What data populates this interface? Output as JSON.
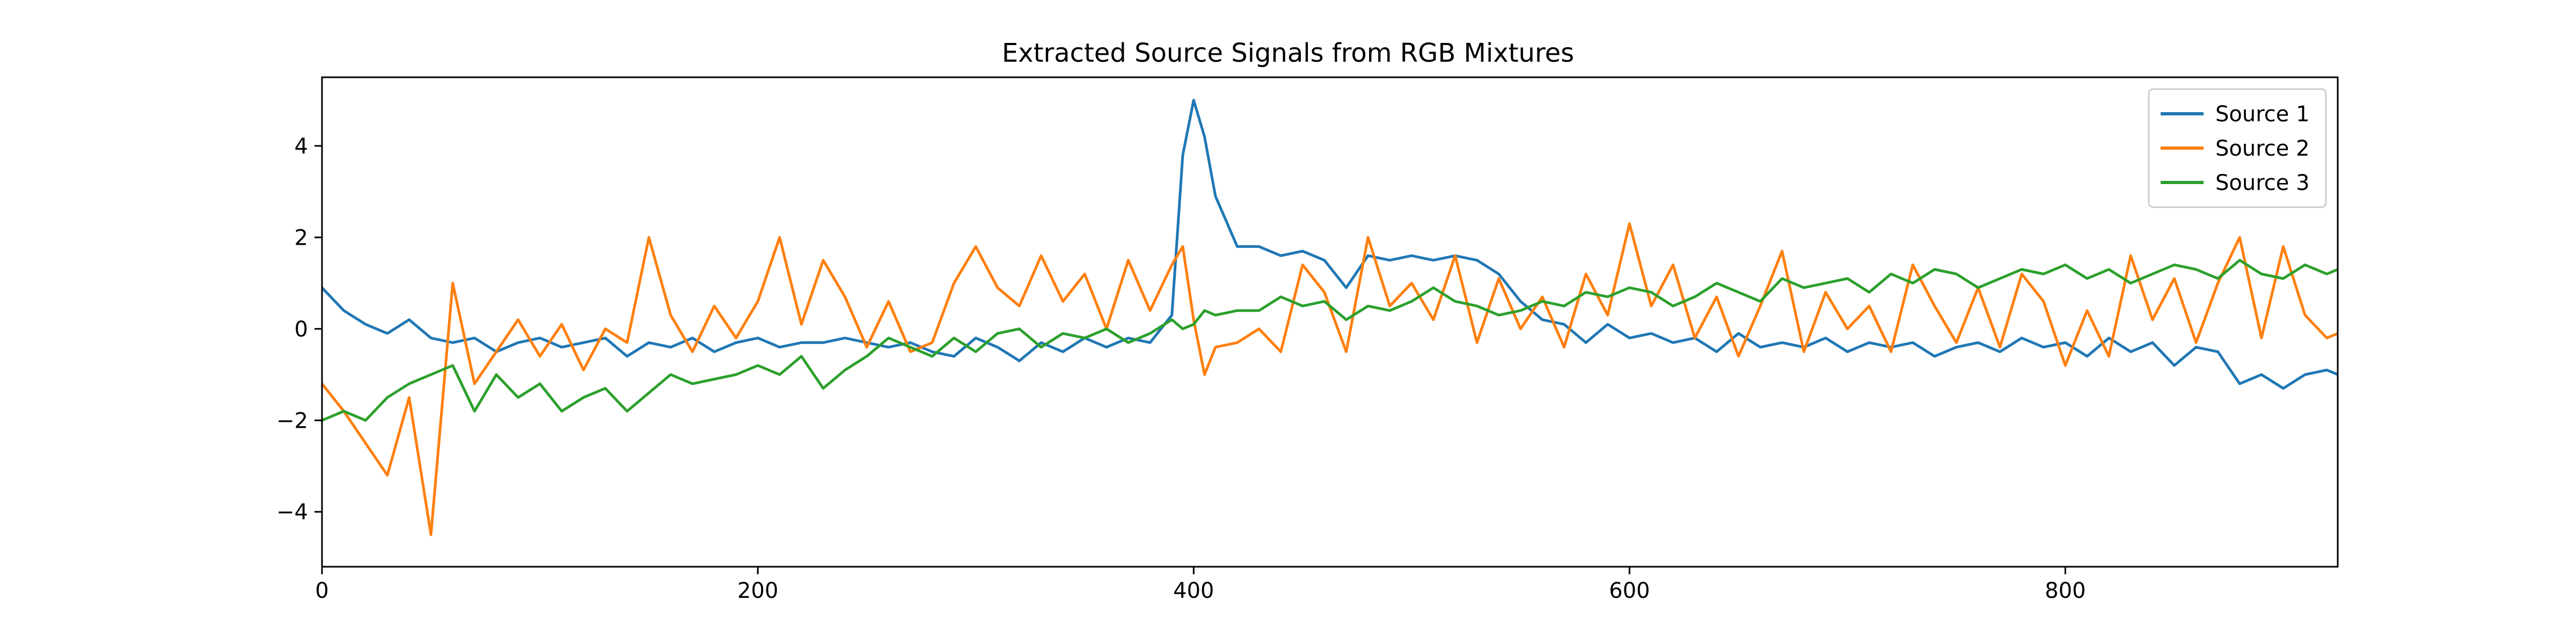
{
  "chart_data": {
    "type": "line",
    "title": "Extracted Source Signals from RGB Mixtures",
    "xlabel": "",
    "ylabel": "",
    "xlim": [
      0,
      925
    ],
    "ylim": [
      -5.2,
      5.5
    ],
    "x_ticks": [
      0,
      200,
      400,
      600,
      800
    ],
    "x_tick_labels": [
      "0",
      "200",
      "400",
      "600",
      "800"
    ],
    "y_ticks": [
      -4,
      -2,
      0,
      2,
      4
    ],
    "y_tick_labels": [
      "−4",
      "−2",
      "0",
      "2",
      "4"
    ],
    "grid": false,
    "legend_position": "upper-right",
    "x": [
      0,
      10,
      20,
      30,
      40,
      50,
      60,
      70,
      80,
      90,
      100,
      110,
      120,
      130,
      140,
      150,
      160,
      170,
      180,
      190,
      200,
      210,
      220,
      230,
      240,
      250,
      260,
      270,
      280,
      290,
      300,
      310,
      320,
      330,
      340,
      350,
      360,
      370,
      380,
      390,
      395,
      400,
      405,
      410,
      420,
      430,
      440,
      450,
      460,
      470,
      480,
      490,
      500,
      510,
      520,
      530,
      540,
      550,
      560,
      570,
      580,
      590,
      600,
      610,
      620,
      630,
      640,
      650,
      660,
      670,
      680,
      690,
      700,
      710,
      720,
      730,
      740,
      750,
      760,
      770,
      780,
      790,
      800,
      810,
      820,
      830,
      840,
      850,
      860,
      870,
      880,
      890,
      900,
      910,
      920,
      925
    ],
    "series": [
      {
        "name": "Source 1",
        "color": "#1f77b4",
        "values": [
          0.9,
          0.4,
          0.1,
          -0.1,
          0.2,
          -0.2,
          -0.3,
          -0.2,
          -0.5,
          -0.3,
          -0.2,
          -0.4,
          -0.3,
          -0.2,
          -0.6,
          -0.3,
          -0.4,
          -0.2,
          -0.5,
          -0.3,
          -0.2,
          -0.4,
          -0.3,
          -0.3,
          -0.2,
          -0.3,
          -0.4,
          -0.3,
          -0.5,
          -0.6,
          -0.2,
          -0.4,
          -0.7,
          -0.3,
          -0.5,
          -0.2,
          -0.4,
          -0.2,
          -0.3,
          0.3,
          3.8,
          5.0,
          4.2,
          2.9,
          1.8,
          1.8,
          1.6,
          1.7,
          1.5,
          0.9,
          1.6,
          1.5,
          1.6,
          1.5,
          1.6,
          1.5,
          1.2,
          0.6,
          0.2,
          0.1,
          -0.3,
          0.1,
          -0.2,
          -0.1,
          -0.3,
          -0.2,
          -0.5,
          -0.1,
          -0.4,
          -0.3,
          -0.4,
          -0.2,
          -0.5,
          -0.3,
          -0.4,
          -0.3,
          -0.6,
          -0.4,
          -0.3,
          -0.5,
          -0.2,
          -0.4,
          -0.3,
          -0.6,
          -0.2,
          -0.5,
          -0.3,
          -0.8,
          -0.4,
          -0.5,
          -1.2,
          -1.0,
          -1.3,
          -1.0,
          -0.9,
          -1.0
        ]
      },
      {
        "name": "Source 2",
        "color": "#ff7f0e",
        "values": [
          -1.2,
          -1.8,
          -2.5,
          -3.2,
          -1.5,
          -4.5,
          1.0,
          -1.2,
          -0.5,
          0.2,
          -0.6,
          0.1,
          -0.9,
          0.0,
          -0.3,
          2.0,
          0.3,
          -0.5,
          0.5,
          -0.2,
          0.6,
          2.0,
          0.1,
          1.5,
          0.7,
          -0.4,
          0.6,
          -0.5,
          -0.3,
          1.0,
          1.8,
          0.9,
          0.5,
          1.6,
          0.6,
          1.2,
          0.0,
          1.5,
          0.4,
          1.4,
          1.8,
          0.2,
          -1.0,
          -0.4,
          -0.3,
          0.0,
          -0.5,
          1.4,
          0.8,
          -0.5,
          2.0,
          0.5,
          1.0,
          0.2,
          1.6,
          -0.3,
          1.1,
          0.0,
          0.7,
          -0.4,
          1.2,
          0.3,
          2.3,
          0.5,
          1.4,
          -0.2,
          0.7,
          -0.6,
          0.5,
          1.7,
          -0.5,
          0.8,
          0.0,
          0.5,
          -0.5,
          1.4,
          0.5,
          -0.3,
          0.9,
          -0.4,
          1.2,
          0.6,
          -0.8,
          0.4,
          -0.6,
          1.6,
          0.2,
          1.1,
          -0.3,
          1.0,
          2.0,
          -0.2,
          1.8,
          0.3,
          -0.2,
          -0.1
        ]
      },
      {
        "name": "Source 3",
        "color": "#2ca02c",
        "values": [
          -2.0,
          -1.8,
          -2.0,
          -1.5,
          -1.2,
          -1.0,
          -0.8,
          -1.8,
          -1.0,
          -1.5,
          -1.2,
          -1.8,
          -1.5,
          -1.3,
          -1.8,
          -1.4,
          -1.0,
          -1.2,
          -1.1,
          -1.0,
          -0.8,
          -1.0,
          -0.6,
          -1.3,
          -0.9,
          -0.6,
          -0.2,
          -0.4,
          -0.6,
          -0.2,
          -0.5,
          -0.1,
          0.0,
          -0.4,
          -0.1,
          -0.2,
          0.0,
          -0.3,
          -0.1,
          0.2,
          0.0,
          0.1,
          0.4,
          0.3,
          0.4,
          0.4,
          0.7,
          0.5,
          0.6,
          0.2,
          0.5,
          0.4,
          0.6,
          0.9,
          0.6,
          0.5,
          0.3,
          0.4,
          0.6,
          0.5,
          0.8,
          0.7,
          0.9,
          0.8,
          0.5,
          0.7,
          1.0,
          0.8,
          0.6,
          1.1,
          0.9,
          1.0,
          1.1,
          0.8,
          1.2,
          1.0,
          1.3,
          1.2,
          0.9,
          1.1,
          1.3,
          1.2,
          1.4,
          1.1,
          1.3,
          1.0,
          1.2,
          1.4,
          1.3,
          1.1,
          1.5,
          1.2,
          1.1,
          1.4,
          1.2,
          1.3
        ]
      }
    ]
  }
}
